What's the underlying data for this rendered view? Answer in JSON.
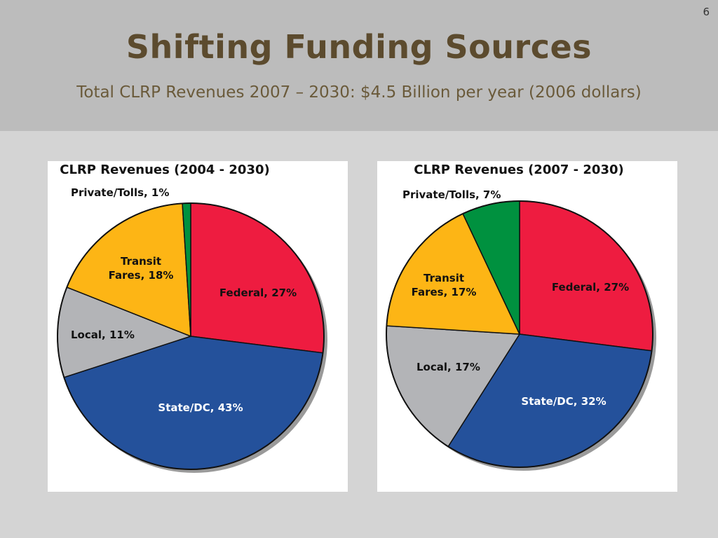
{
  "slide": {
    "number": "6",
    "title": "Shifting Funding Sources",
    "subtitle": "Total CLRP Revenues 2007 – 2030: $4.5 Billion per year (2006 dollars)"
  },
  "chart_data": [
    {
      "type": "pie",
      "title": "CLRP Revenues (2004 - 2030)",
      "slices": [
        {
          "name": "Federal",
          "value": 27,
          "label_lines": [
            "Federal, 27%"
          ],
          "color": "#ee1c40",
          "text_color": "#111111"
        },
        {
          "name": "State/DC",
          "value": 43,
          "label_lines": [
            "State/DC, 43%"
          ],
          "color": "#24519b",
          "text_color": "#ffffff"
        },
        {
          "name": "Local",
          "value": 11,
          "label_lines": [
            "Local, 11%"
          ],
          "color": "#b3b4b7",
          "text_color": "#111111"
        },
        {
          "name": "Transit Fares",
          "value": 18,
          "label_lines": [
            "Transit",
            "Fares, 18%"
          ],
          "color": "#fdb515",
          "text_color": "#111111"
        },
        {
          "name": "Private/Tolls",
          "value": 1,
          "label_lines": [
            "Private/Tolls, 1%"
          ],
          "color": "#00913f",
          "text_color": "#111111"
        }
      ]
    },
    {
      "type": "pie",
      "title": "CLRP Revenues (2007 - 2030)",
      "slices": [
        {
          "name": "Federal",
          "value": 27,
          "label_lines": [
            "Federal, 27%"
          ],
          "color": "#ee1c40",
          "text_color": "#111111"
        },
        {
          "name": "State/DC",
          "value": 32,
          "label_lines": [
            "State/DC, 32%"
          ],
          "color": "#24519b",
          "text_color": "#ffffff"
        },
        {
          "name": "Local",
          "value": 17,
          "label_lines": [
            "Local, 17%"
          ],
          "color": "#b3b4b7",
          "text_color": "#111111"
        },
        {
          "name": "Transit Fares",
          "value": 17,
          "label_lines": [
            "Transit",
            "Fares, 17%"
          ],
          "color": "#fdb515",
          "text_color": "#111111"
        },
        {
          "name": "Private/Tolls",
          "value": 7,
          "label_lines": [
            "Private/Tolls, 7%"
          ],
          "color": "#00913f",
          "text_color": "#111111"
        }
      ]
    }
  ]
}
